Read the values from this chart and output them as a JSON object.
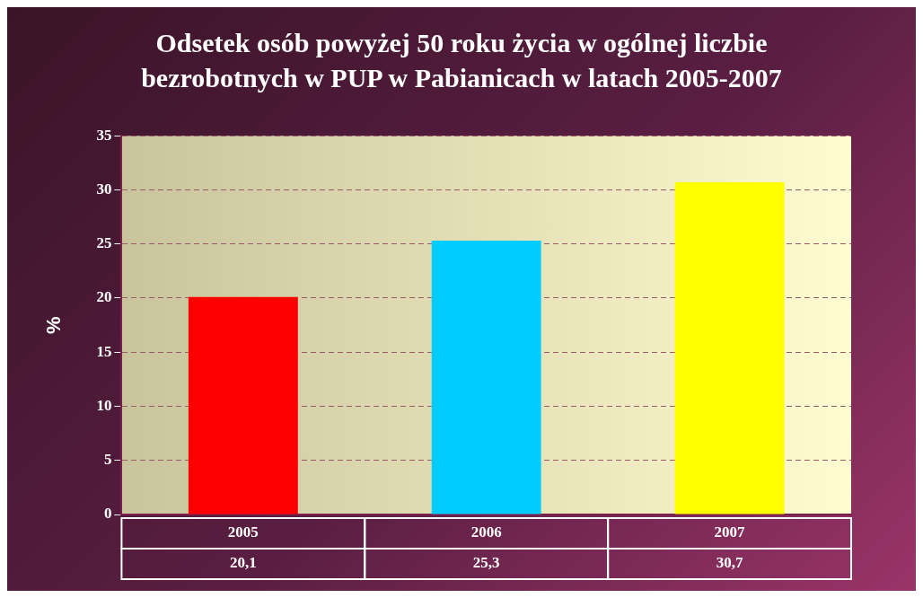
{
  "chart_data": {
    "type": "bar",
    "title": "Odsetek osób powyżej 50 roku życia w ogólnej liczbie bezrobotnych w PUP w Pabianicach w latach 2005-2007",
    "ylabel": "%",
    "categories": [
      "2005",
      "2006",
      "2007"
    ],
    "values": [
      20.1,
      25.3,
      30.7
    ],
    "colors": [
      "#ff0000",
      "#00ccff",
      "#ffff00"
    ],
    "ylim": [
      0,
      35
    ],
    "yticks": [
      0,
      5,
      10,
      15,
      20,
      25,
      30,
      35
    ],
    "value_labels": [
      "20,1",
      "25,3",
      "30,7"
    ],
    "grid": "y",
    "legend": false
  }
}
